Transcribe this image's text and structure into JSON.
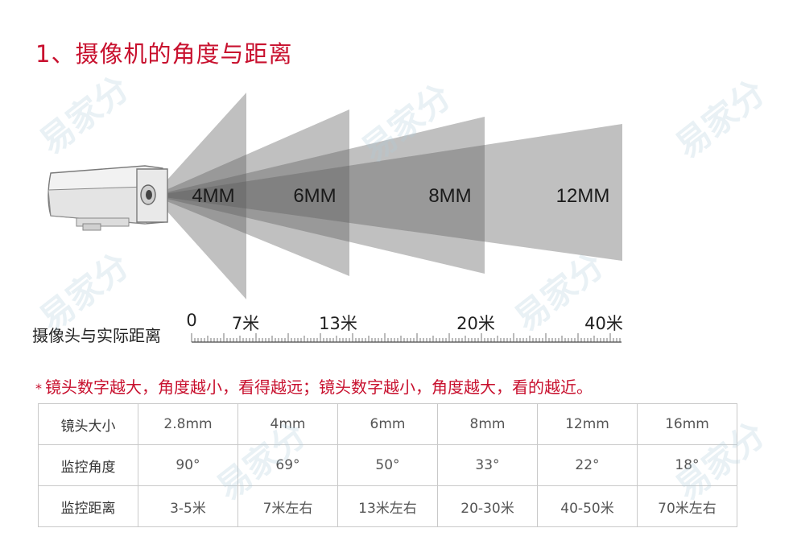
{
  "title": "1、摄像机的角度与距离",
  "cones": [
    {
      "label": "4MM"
    },
    {
      "label": "6MM"
    },
    {
      "label": "8MM"
    },
    {
      "label": "12MM"
    }
  ],
  "ruler": {
    "label": "摄像头与实际距离",
    "ticks": [
      "0",
      "7米",
      "13米",
      "20米",
      "40米"
    ]
  },
  "note": {
    "star": "*",
    "text": "镜头数字越大，角度越小，看得越远；镜头数字越小，角度越大，看的越近。"
  },
  "table": {
    "rows": [
      [
        "镜头大小",
        "2.8mm",
        "4mm",
        "6mm",
        "8mm",
        "12mm",
        "16mm"
      ],
      [
        "监控角度",
        "90°",
        "69°",
        "50°",
        "33°",
        "22°",
        "18°"
      ],
      [
        "监控距离",
        "3-5米",
        "7米左右",
        "13米左右",
        "20-30米",
        "40-50米",
        "70米左右"
      ]
    ]
  },
  "watermark": "易家分",
  "colors": {
    "accent": "#c8102e",
    "cone": "#5a5a5a"
  }
}
